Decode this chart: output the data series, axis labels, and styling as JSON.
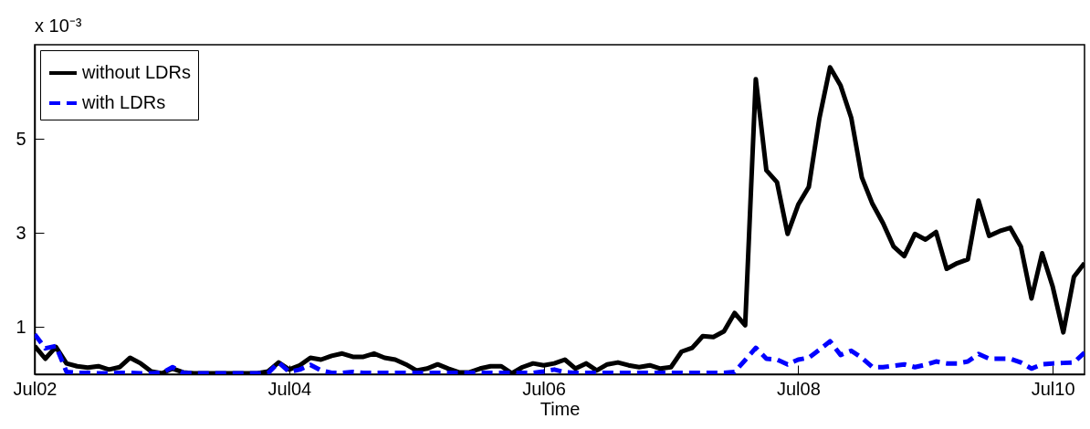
{
  "chart_data": {
    "type": "line",
    "xlabel": "Time",
    "annotations": [
      "x 10⁻³"
    ],
    "x": [
      "--07-02T00:00",
      "--07-02T02:00",
      "--07-02T04:00",
      "--07-02T06:00",
      "--07-02T08:00",
      "--07-02T10:00",
      "--07-02T12:00",
      "--07-02T14:00",
      "--07-02T16:00",
      "--07-02T18:00",
      "--07-02T20:00",
      "--07-02T22:00",
      "--07-03T00:00",
      "--07-03T02:00",
      "--07-03T04:00",
      "--07-03T06:00",
      "--07-03T08:00",
      "--07-03T10:00",
      "--07-03T12:00",
      "--07-03T14:00",
      "--07-03T16:00",
      "--07-03T18:00",
      "--07-03T20:00",
      "--07-03T22:00",
      "--07-04T00:00",
      "--07-04T02:00",
      "--07-04T04:00",
      "--07-04T06:00",
      "--07-04T08:00",
      "--07-04T10:00",
      "--07-04T12:00",
      "--07-04T14:00",
      "--07-04T16:00",
      "--07-04T18:00",
      "--07-04T20:00",
      "--07-04T22:00",
      "--07-05T00:00",
      "--07-05T02:00",
      "--07-05T04:00",
      "--07-05T06:00",
      "--07-05T08:00",
      "--07-05T10:00",
      "--07-05T12:00",
      "--07-05T14:00",
      "--07-05T16:00",
      "--07-05T18:00",
      "--07-05T20:00",
      "--07-05T22:00",
      "--07-06T00:00",
      "--07-06T02:00",
      "--07-06T04:00",
      "--07-06T06:00",
      "--07-06T08:00",
      "--07-06T10:00",
      "--07-06T12:00",
      "--07-06T14:00",
      "--07-06T16:00",
      "--07-06T18:00",
      "--07-06T20:00",
      "--07-06T22:00",
      "--07-07T00:00",
      "--07-07T02:00",
      "--07-07T04:00",
      "--07-07T06:00",
      "--07-07T08:00",
      "--07-07T10:00",
      "--07-07T12:00",
      "--07-07T14:00",
      "--07-07T16:00",
      "--07-07T18:00",
      "--07-07T20:00",
      "--07-07T22:00",
      "--07-08T00:00",
      "--07-08T02:00",
      "--07-08T04:00",
      "--07-08T06:00",
      "--07-08T08:00",
      "--07-08T10:00",
      "--07-08T12:00",
      "--07-08T14:00",
      "--07-08T16:00",
      "--07-08T18:00",
      "--07-08T20:00",
      "--07-08T22:00",
      "--07-09T00:00",
      "--07-09T02:00",
      "--07-09T04:00",
      "--07-09T06:00",
      "--07-09T08:00",
      "--07-09T10:00",
      "--07-09T12:00",
      "--07-09T14:00",
      "--07-09T16:00",
      "--07-09T18:00",
      "--07-09T20:00",
      "--07-09T22:00",
      "--07-10T00:00",
      "--07-10T02:00",
      "--07-10T04:00",
      "--07-10T06:00"
    ],
    "series": [
      {
        "name": "without LDRs",
        "color": "#000000",
        "line_style": "solid",
        "values": [
          0.6,
          0.33,
          0.58,
          0.23,
          0.17,
          0.14,
          0.17,
          0.1,
          0.15,
          0.35,
          0.23,
          0.06,
          0.02,
          0.12,
          0.04,
          0.02,
          0.02,
          0.02,
          0.02,
          0.02,
          0.02,
          0.02,
          0.06,
          0.25,
          0.1,
          0.19,
          0.35,
          0.31,
          0.39,
          0.44,
          0.37,
          0.37,
          0.44,
          0.35,
          0.31,
          0.21,
          0.08,
          0.12,
          0.21,
          0.12,
          0.04,
          0.04,
          0.12,
          0.17,
          0.17,
          0.02,
          0.15,
          0.23,
          0.19,
          0.23,
          0.31,
          0.12,
          0.23,
          0.08,
          0.21,
          0.25,
          0.19,
          0.15,
          0.19,
          0.12,
          0.15,
          0.48,
          0.56,
          0.81,
          0.79,
          0.91,
          1.3,
          1.04,
          6.27,
          4.33,
          4.08,
          2.98,
          3.6,
          3.98,
          5.44,
          6.52,
          6.13,
          5.45,
          4.18,
          3.62,
          3.21,
          2.71,
          2.51,
          2.98,
          2.86,
          3.02,
          2.24,
          2.36,
          2.44,
          3.69,
          2.94,
          3.04,
          3.11,
          2.71,
          1.61,
          2.57,
          1.86,
          0.89,
          2.07,
          2.36
        ]
      },
      {
        "name": "with LDRs",
        "color": "#0000ff",
        "line_style": "dashed",
        "values": [
          0.85,
          0.55,
          0.6,
          0.05,
          0.03,
          0.03,
          0.02,
          0.02,
          0.03,
          0.03,
          0.02,
          0.02,
          0.03,
          0.15,
          0.03,
          0.02,
          0.02,
          0.02,
          0.02,
          0.02,
          0.02,
          0.02,
          0.02,
          0.25,
          0.05,
          0.1,
          0.2,
          0.08,
          0.03,
          0.03,
          0.05,
          0.03,
          0.03,
          0.03,
          0.03,
          0.03,
          0.03,
          0.03,
          0.03,
          0.03,
          0.03,
          0.03,
          0.03,
          0.03,
          0.03,
          0.03,
          0.03,
          0.03,
          0.06,
          0.1,
          0.04,
          0.03,
          0.03,
          0.03,
          0.03,
          0.03,
          0.03,
          0.03,
          0.03,
          0.03,
          0.03,
          0.03,
          0.03,
          0.03,
          0.03,
          0.03,
          0.05,
          0.3,
          0.56,
          0.33,
          0.31,
          0.21,
          0.31,
          0.35,
          0.52,
          0.7,
          0.41,
          0.5,
          0.35,
          0.15,
          0.15,
          0.18,
          0.21,
          0.15,
          0.2,
          0.27,
          0.23,
          0.23,
          0.27,
          0.43,
          0.33,
          0.33,
          0.33,
          0.25,
          0.12,
          0.21,
          0.23,
          0.24,
          0.25,
          0.46
        ]
      }
    ],
    "xlim": [
      "--07-02T00:00",
      "--07-10T06:00"
    ],
    "xticks": [
      {
        "value": "--07-02",
        "label": "Jul02"
      },
      {
        "value": "--07-04",
        "label": "Jul04"
      },
      {
        "value": "--07-06",
        "label": "Jul06"
      },
      {
        "value": "--07-08",
        "label": "Jul08"
      },
      {
        "value": "--07-10",
        "label": "Jul10"
      }
    ],
    "ylim": [
      0,
      7
    ],
    "yticks": [
      1,
      3,
      5
    ],
    "grid": false,
    "legend": "top left"
  }
}
